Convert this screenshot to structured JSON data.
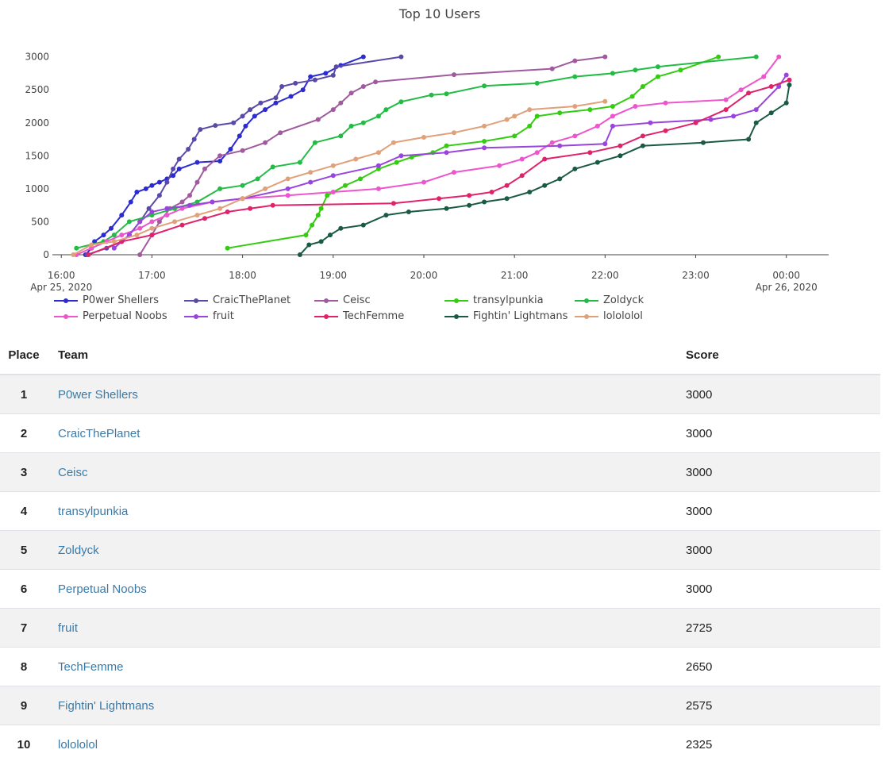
{
  "chart_data": {
    "type": "line",
    "title": "Top 10 Users",
    "xlabel": "",
    "ylabel": "",
    "x_axis": "time",
    "x_ticks": [
      {
        "t": "16:00",
        "sub": "Apr 25, 2020"
      },
      {
        "t": "17:00",
        "sub": ""
      },
      {
        "t": "18:00",
        "sub": ""
      },
      {
        "t": "19:00",
        "sub": ""
      },
      {
        "t": "20:00",
        "sub": ""
      },
      {
        "t": "21:00",
        "sub": ""
      },
      {
        "t": "22:00",
        "sub": ""
      },
      {
        "t": "23:00",
        "sub": ""
      },
      {
        "t": "00:00",
        "sub": "Apr 26, 2020"
      }
    ],
    "xlim": [
      "2020-04-25 15:52",
      "2020-04-26 00:28"
    ],
    "ylim": [
      0,
      3200
    ],
    "y_ticks": [
      0,
      500,
      1000,
      1500,
      2000,
      2500,
      3000
    ],
    "legend_position": "bottom",
    "series": [
      {
        "name": "P0wer Shellers",
        "color": "#2b2bd1",
        "points": [
          [
            "16:16",
            0
          ],
          [
            "16:20",
            100
          ],
          [
            "16:22",
            200
          ],
          [
            "16:28",
            300
          ],
          [
            "16:33",
            400
          ],
          [
            "16:40",
            600
          ],
          [
            "16:46",
            800
          ],
          [
            "16:50",
            950
          ],
          [
            "16:56",
            1000
          ],
          [
            "17:00",
            1050
          ],
          [
            "17:05",
            1100
          ],
          [
            "17:10",
            1150
          ],
          [
            "17:14",
            1200
          ],
          [
            "17:18",
            1300
          ],
          [
            "17:30",
            1400
          ],
          [
            "17:45",
            1420
          ],
          [
            "17:52",
            1600
          ],
          [
            "17:58",
            1800
          ],
          [
            "18:02",
            1950
          ],
          [
            "18:08",
            2100
          ],
          [
            "18:15",
            2200
          ],
          [
            "18:22",
            2300
          ],
          [
            "18:32",
            2400
          ],
          [
            "18:40",
            2500
          ],
          [
            "18:45",
            2700
          ],
          [
            "18:55",
            2750
          ],
          [
            "19:05",
            2870
          ],
          [
            "19:20",
            3000
          ]
        ]
      },
      {
        "name": "CraicThePlanet",
        "color": "#5a4aa8",
        "points": [
          [
            "16:17",
            0
          ],
          [
            "16:30",
            100
          ],
          [
            "16:40",
            200
          ],
          [
            "16:45",
            300
          ],
          [
            "16:52",
            500
          ],
          [
            "16:58",
            700
          ],
          [
            "17:05",
            900
          ],
          [
            "17:10",
            1100
          ],
          [
            "17:14",
            1300
          ],
          [
            "17:18",
            1450
          ],
          [
            "17:24",
            1600
          ],
          [
            "17:28",
            1750
          ],
          [
            "17:32",
            1900
          ],
          [
            "17:42",
            1960
          ],
          [
            "17:54",
            2000
          ],
          [
            "18:00",
            2100
          ],
          [
            "18:05",
            2200
          ],
          [
            "18:12",
            2300
          ],
          [
            "18:22",
            2380
          ],
          [
            "18:26",
            2550
          ],
          [
            "18:35",
            2600
          ],
          [
            "18:48",
            2650
          ],
          [
            "19:00",
            2720
          ],
          [
            "19:02",
            2850
          ],
          [
            "19:45",
            3000
          ]
        ]
      },
      {
        "name": "Ceisc",
        "color": "#a05a9e",
        "points": [
          [
            "16:52",
            0
          ],
          [
            "17:00",
            300
          ],
          [
            "17:05",
            500
          ],
          [
            "17:12",
            700
          ],
          [
            "17:20",
            800
          ],
          [
            "17:25",
            900
          ],
          [
            "17:30",
            1100
          ],
          [
            "17:35",
            1300
          ],
          [
            "17:45",
            1500
          ],
          [
            "18:00",
            1580
          ],
          [
            "18:15",
            1700
          ],
          [
            "18:25",
            1850
          ],
          [
            "18:50",
            2050
          ],
          [
            "19:00",
            2200
          ],
          [
            "19:05",
            2300
          ],
          [
            "19:12",
            2450
          ],
          [
            "19:20",
            2550
          ],
          [
            "19:28",
            2620
          ],
          [
            "20:20",
            2730
          ],
          [
            "21:25",
            2820
          ],
          [
            "21:40",
            2940
          ],
          [
            "22:00",
            3000
          ]
        ]
      },
      {
        "name": "transylpunkia",
        "color": "#33cc11",
        "points": [
          [
            "17:50",
            100
          ],
          [
            "18:42",
            300
          ],
          [
            "18:46",
            450
          ],
          [
            "18:50",
            600
          ],
          [
            "18:52",
            700
          ],
          [
            "18:56",
            900
          ],
          [
            "19:08",
            1050
          ],
          [
            "19:18",
            1150
          ],
          [
            "19:30",
            1300
          ],
          [
            "19:42",
            1400
          ],
          [
            "19:52",
            1480
          ],
          [
            "20:06",
            1550
          ],
          [
            "20:15",
            1650
          ],
          [
            "20:40",
            1720
          ],
          [
            "21:00",
            1800
          ],
          [
            "21:10",
            1950
          ],
          [
            "21:15",
            2100
          ],
          [
            "21:30",
            2150
          ],
          [
            "21:50",
            2200
          ],
          [
            "22:05",
            2250
          ],
          [
            "22:18",
            2400
          ],
          [
            "22:25",
            2550
          ],
          [
            "22:35",
            2700
          ],
          [
            "22:50",
            2800
          ],
          [
            "23:15",
            3000
          ]
        ]
      },
      {
        "name": "Zoldyck",
        "color": "#22bb44",
        "points": [
          [
            "16:10",
            100
          ],
          [
            "16:28",
            200
          ],
          [
            "16:35",
            300
          ],
          [
            "16:45",
            500
          ],
          [
            "17:00",
            600
          ],
          [
            "17:15",
            700
          ],
          [
            "17:30",
            800
          ],
          [
            "17:45",
            1000
          ],
          [
            "18:00",
            1050
          ],
          [
            "18:10",
            1150
          ],
          [
            "18:20",
            1330
          ],
          [
            "18:38",
            1400
          ],
          [
            "18:48",
            1700
          ],
          [
            "19:05",
            1800
          ],
          [
            "19:12",
            1950
          ],
          [
            "19:20",
            2000
          ],
          [
            "19:30",
            2100
          ],
          [
            "19:35",
            2200
          ],
          [
            "19:45",
            2320
          ],
          [
            "20:05",
            2420
          ],
          [
            "20:15",
            2440
          ],
          [
            "20:40",
            2560
          ],
          [
            "21:15",
            2600
          ],
          [
            "21:40",
            2700
          ],
          [
            "22:05",
            2750
          ],
          [
            "22:20",
            2800
          ],
          [
            "22:35",
            2850
          ],
          [
            "23:40",
            3000
          ]
        ]
      },
      {
        "name": "Perpetual Noobs",
        "color": "#ee55cc",
        "points": [
          [
            "16:10",
            0
          ],
          [
            "16:20",
            100
          ],
          [
            "16:30",
            200
          ],
          [
            "16:40",
            300
          ],
          [
            "16:52",
            400
          ],
          [
            "17:00",
            500
          ],
          [
            "17:10",
            600
          ],
          [
            "17:20",
            700
          ],
          [
            "17:40",
            800
          ],
          [
            "18:00",
            850
          ],
          [
            "18:30",
            900
          ],
          [
            "19:00",
            950
          ],
          [
            "19:30",
            1000
          ],
          [
            "20:00",
            1100
          ],
          [
            "20:20",
            1250
          ],
          [
            "20:50",
            1350
          ],
          [
            "21:05",
            1450
          ],
          [
            "21:15",
            1550
          ],
          [
            "21:25",
            1700
          ],
          [
            "21:40",
            1800
          ],
          [
            "21:55",
            1950
          ],
          [
            "22:05",
            2100
          ],
          [
            "22:20",
            2250
          ],
          [
            "22:40",
            2300
          ],
          [
            "23:20",
            2350
          ],
          [
            "23:30",
            2500
          ],
          [
            "23:45",
            2700
          ],
          [
            "23:55",
            3000
          ]
        ]
      },
      {
        "name": "fruit",
        "color": "#9944dd",
        "points": [
          [
            "16:35",
            100
          ],
          [
            "16:45",
            300
          ],
          [
            "16:52",
            500
          ],
          [
            "17:00",
            650
          ],
          [
            "17:10",
            700
          ],
          [
            "17:25",
            750
          ],
          [
            "17:40",
            800
          ],
          [
            "18:00",
            850
          ],
          [
            "18:30",
            1000
          ],
          [
            "18:45",
            1100
          ],
          [
            "19:00",
            1200
          ],
          [
            "19:30",
            1350
          ],
          [
            "19:45",
            1500
          ],
          [
            "20:15",
            1550
          ],
          [
            "20:40",
            1620
          ],
          [
            "21:30",
            1650
          ],
          [
            "22:00",
            1680
          ],
          [
            "22:05",
            1950
          ],
          [
            "22:30",
            2000
          ],
          [
            "23:10",
            2050
          ],
          [
            "23:25",
            2100
          ],
          [
            "23:40",
            2200
          ],
          [
            "23:55",
            2550
          ],
          [
            "24:00",
            2725
          ]
        ]
      },
      {
        "name": "TechFemme",
        "color": "#e0226a",
        "points": [
          [
            "16:18",
            0
          ],
          [
            "16:40",
            200
          ],
          [
            "17:00",
            300
          ],
          [
            "17:20",
            450
          ],
          [
            "17:35",
            550
          ],
          [
            "17:50",
            650
          ],
          [
            "18:05",
            700
          ],
          [
            "18:20",
            750
          ],
          [
            "19:40",
            780
          ],
          [
            "20:10",
            850
          ],
          [
            "20:30",
            900
          ],
          [
            "20:45",
            950
          ],
          [
            "20:55",
            1050
          ],
          [
            "21:05",
            1200
          ],
          [
            "21:20",
            1450
          ],
          [
            "21:50",
            1550
          ],
          [
            "22:10",
            1650
          ],
          [
            "22:25",
            1800
          ],
          [
            "22:40",
            1880
          ],
          [
            "23:00",
            2000
          ],
          [
            "23:20",
            2200
          ],
          [
            "23:35",
            2450
          ],
          [
            "23:50",
            2550
          ],
          [
            "24:02",
            2650
          ]
        ]
      },
      {
        "name": "Fightin' Lightmans",
        "color": "#1a5a44",
        "points": [
          [
            "18:38",
            0
          ],
          [
            "18:44",
            150
          ],
          [
            "18:52",
            200
          ],
          [
            "18:58",
            300
          ],
          [
            "19:05",
            400
          ],
          [
            "19:20",
            450
          ],
          [
            "19:35",
            600
          ],
          [
            "19:50",
            650
          ],
          [
            "20:15",
            700
          ],
          [
            "20:30",
            750
          ],
          [
            "20:40",
            800
          ],
          [
            "20:55",
            850
          ],
          [
            "21:10",
            950
          ],
          [
            "21:20",
            1050
          ],
          [
            "21:30",
            1150
          ],
          [
            "21:40",
            1300
          ],
          [
            "21:55",
            1400
          ],
          [
            "22:10",
            1500
          ],
          [
            "22:25",
            1650
          ],
          [
            "23:05",
            1700
          ],
          [
            "23:35",
            1750
          ],
          [
            "23:40",
            2000
          ],
          [
            "23:50",
            2150
          ],
          [
            "24:00",
            2300
          ],
          [
            "24:02",
            2575
          ]
        ]
      },
      {
        "name": "lolololol",
        "color": "#e0a07a",
        "points": [
          [
            "16:08",
            0
          ],
          [
            "16:20",
            150
          ],
          [
            "16:35",
            200
          ],
          [
            "16:50",
            300
          ],
          [
            "17:00",
            400
          ],
          [
            "17:15",
            500
          ],
          [
            "17:30",
            600
          ],
          [
            "17:45",
            700
          ],
          [
            "18:00",
            850
          ],
          [
            "18:15",
            1000
          ],
          [
            "18:30",
            1150
          ],
          [
            "18:45",
            1250
          ],
          [
            "19:00",
            1350
          ],
          [
            "19:15",
            1450
          ],
          [
            "19:30",
            1550
          ],
          [
            "19:40",
            1700
          ],
          [
            "20:00",
            1780
          ],
          [
            "20:20",
            1850
          ],
          [
            "20:40",
            1950
          ],
          [
            "20:55",
            2050
          ],
          [
            "21:00",
            2100
          ],
          [
            "21:10",
            2200
          ],
          [
            "21:40",
            2250
          ],
          [
            "22:00",
            2325
          ]
        ]
      }
    ]
  },
  "scoreboard": {
    "headers": {
      "place": "Place",
      "team": "Team",
      "score": "Score"
    },
    "rows": [
      {
        "place": "1",
        "team": "P0wer Shellers",
        "score": "3000"
      },
      {
        "place": "2",
        "team": "CraicThePlanet",
        "score": "3000"
      },
      {
        "place": "3",
        "team": "Ceisc",
        "score": "3000"
      },
      {
        "place": "4",
        "team": "transylpunkia",
        "score": "3000"
      },
      {
        "place": "5",
        "team": "Zoldyck",
        "score": "3000"
      },
      {
        "place": "6",
        "team": "Perpetual Noobs",
        "score": "3000"
      },
      {
        "place": "7",
        "team": "fruit",
        "score": "2725"
      },
      {
        "place": "8",
        "team": "TechFemme",
        "score": "2650"
      },
      {
        "place": "9",
        "team": "Fightin' Lightmans",
        "score": "2575"
      },
      {
        "place": "10",
        "team": "lolololol",
        "score": "2325"
      }
    ]
  }
}
